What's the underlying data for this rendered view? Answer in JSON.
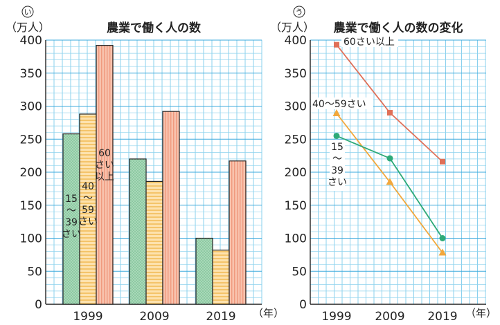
{
  "chart_data": [
    {
      "id": "left",
      "marker": "い",
      "type": "bar",
      "title": "農業で働く人の数",
      "unit_label": "（万人）",
      "categories": [
        "1999",
        "2009",
        "2019"
      ],
      "x_unit": "（年）",
      "ylim": [
        0,
        400
      ],
      "y_ticks": [
        0,
        50,
        100,
        150,
        200,
        250,
        300,
        350,
        400
      ],
      "grid": true,
      "series": [
        {
          "name": "15～39さい",
          "label_lines": [
            "15",
            "～",
            "39",
            "さい"
          ],
          "color": "#a8d8b8",
          "values": [
            258,
            220,
            100
          ]
        },
        {
          "name": "40～59さい",
          "label_lines": [
            "40",
            "～",
            "59",
            "さい"
          ],
          "color": "#fcd79a",
          "values": [
            288,
            186,
            82
          ]
        },
        {
          "name": "60さい以上",
          "label_lines": [
            "60",
            "さい",
            "以上"
          ],
          "color": "#f6b39b",
          "values": [
            392,
            292,
            217
          ]
        }
      ]
    },
    {
      "id": "right",
      "marker": "う",
      "type": "line",
      "title": "農業で働く人の数の変化",
      "unit_label": "（万人）",
      "categories": [
        "1999",
        "2009",
        "2019"
      ],
      "x_unit": "（年）",
      "ylim": [
        0,
        400
      ],
      "y_ticks": [
        0,
        50,
        100,
        150,
        200,
        250,
        300,
        350,
        400
      ],
      "grid": true,
      "series": [
        {
          "name": "60さい以上",
          "label_lines": [
            "60さい以上"
          ],
          "color": "#e07058",
          "marker": "square",
          "values": [
            393,
            290,
            216
          ]
        },
        {
          "name": "40～59さい",
          "label_lines": [
            "40～59さい"
          ],
          "color": "#f2a83c",
          "marker": "triangle",
          "values": [
            289,
            185,
            78
          ]
        },
        {
          "name": "15～39さい",
          "label_lines": [
            "15",
            "～",
            "39",
            "さい"
          ],
          "color": "#2eaa78",
          "marker": "circle",
          "values": [
            255,
            221,
            100
          ]
        }
      ]
    }
  ]
}
